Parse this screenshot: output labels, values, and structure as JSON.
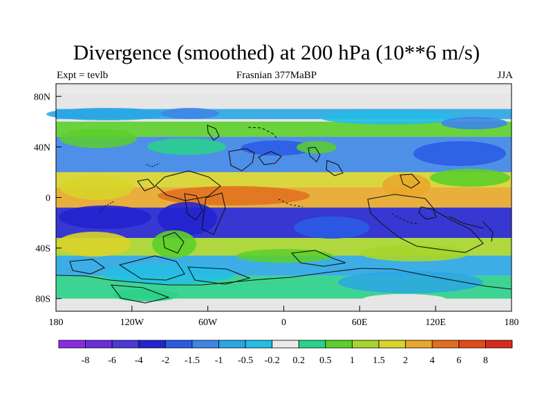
{
  "chart_data": {
    "type": "heatmap",
    "title": "Divergence (smoothed) at 200 hPa (10**6 m/s)",
    "subtitle_left": "Expt = tevlb",
    "subtitle_center": "Frasnian 377MaBP",
    "subtitle_right": "JJA",
    "variable": "divergence",
    "units": "10**6 m/s",
    "xlim": [
      -180,
      180
    ],
    "ylim": [
      -90,
      90
    ],
    "x_ticks": [
      -180,
      -120,
      -60,
      0,
      60,
      120,
      180
    ],
    "x_tick_labels": [
      "180",
      "120W",
      "60W",
      "0",
      "60E",
      "120E",
      "180"
    ],
    "y_ticks": [
      80,
      40,
      0,
      -40,
      -80
    ],
    "y_tick_labels": [
      "80N",
      "40N",
      "0",
      "40S",
      "80S"
    ],
    "colorbar": {
      "levels": [
        -8,
        -6,
        -4,
        -2,
        -1.5,
        -1,
        -0.5,
        -0.2,
        0.2,
        0.5,
        1,
        1.5,
        2,
        4,
        6,
        8
      ],
      "labels": [
        "-8",
        "-6",
        "-4",
        "-2",
        "-1.5",
        "-1",
        "-0.5",
        "-0.2",
        "0.2",
        "0.5",
        "1",
        "1.5",
        "2",
        "4",
        "6",
        "8"
      ],
      "colors": [
        "#8a2be2",
        "#6a2ed8",
        "#4d39d4",
        "#2323cf",
        "#2b5be4",
        "#3d86e7",
        "#2aa6e4",
        "#24bde6",
        "#eaeaea",
        "#2ad28a",
        "#5ccf2a",
        "#a7d62b",
        "#d8d42a",
        "#e8a82a",
        "#e26e1f",
        "#e24a1a",
        "#d92a1c"
      ]
    },
    "bands": [
      {
        "lat_south": 82,
        "lat_north": 88,
        "value": 0
      },
      {
        "lat_south": 62,
        "lat_north": 70,
        "value": -0.7
      },
      {
        "lat_south": 48,
        "lat_north": 60,
        "value": 0.8
      },
      {
        "lat_south": 20,
        "lat_north": 48,
        "value": -1.2
      },
      {
        "lat_south": 8,
        "lat_north": 20,
        "value": 1.6
      },
      {
        "lat_south": -8,
        "lat_north": 8,
        "value": 3.2
      },
      {
        "lat_south": -32,
        "lat_north": -8,
        "value": -2.1
      },
      {
        "lat_south": -46,
        "lat_north": -32,
        "value": 1.3
      },
      {
        "lat_south": -62,
        "lat_north": -46,
        "value": -0.9
      },
      {
        "lat_south": -80,
        "lat_north": -62,
        "value": 0.4
      }
    ]
  }
}
